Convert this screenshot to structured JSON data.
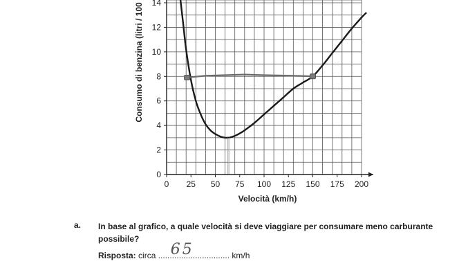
{
  "chart_data": {
    "type": "line",
    "xlabel": "Velocità (km/h)",
    "ylabel": "Consumo di benzina (litri / 100",
    "x_ticks": [
      0,
      25,
      50,
      75,
      100,
      125,
      150,
      175,
      200
    ],
    "y_ticks": [
      0,
      2,
      4,
      6,
      8,
      10,
      12,
      14
    ],
    "xlim": [
      0,
      200
    ],
    "ylim": [
      0,
      14
    ],
    "grid": true,
    "series": [
      {
        "x": [
          14,
          17,
          20,
          25,
          30,
          35,
          40,
          45,
          50,
          55,
          60,
          62,
          65,
          70,
          75,
          80,
          90,
          100,
          110,
          120,
          130,
          140,
          150,
          160,
          170,
          180,
          190,
          200,
          205
        ],
        "y": [
          14.4,
          12.3,
          10.2,
          7.7,
          6.0,
          4.9,
          4.1,
          3.6,
          3.3,
          3.1,
          3.0,
          3.0,
          3.02,
          3.15,
          3.35,
          3.6,
          4.2,
          4.9,
          5.6,
          6.3,
          7.0,
          7.5,
          8.0,
          8.9,
          9.9,
          10.9,
          11.9,
          12.8,
          13.2
        ]
      }
    ],
    "annotations": [
      {
        "type": "handwritten-line",
        "x": [
          20,
          40,
          60,
          80,
          100,
          130,
          150
        ],
        "y": [
          7.9,
          8.05,
          8.1,
          8.15,
          8.1,
          8.05,
          8.0
        ]
      },
      {
        "type": "handwritten-marker",
        "x": 21,
        "y": 7.9
      },
      {
        "type": "handwritten-marker",
        "x": 150,
        "y": 8.0
      },
      {
        "type": "handwritten-drop-line",
        "x": 63,
        "y": 3.0
      }
    ]
  },
  "question": {
    "letter": "a.",
    "text": "In base al grafico, a quale velocità si deve viaggiare per consumare meno carburante possibile?",
    "answer_label": "Risposta:",
    "answer_prefix": "circa",
    "answer_dots": "...............................",
    "answer_value": "65",
    "answer_unit": "km/h"
  }
}
